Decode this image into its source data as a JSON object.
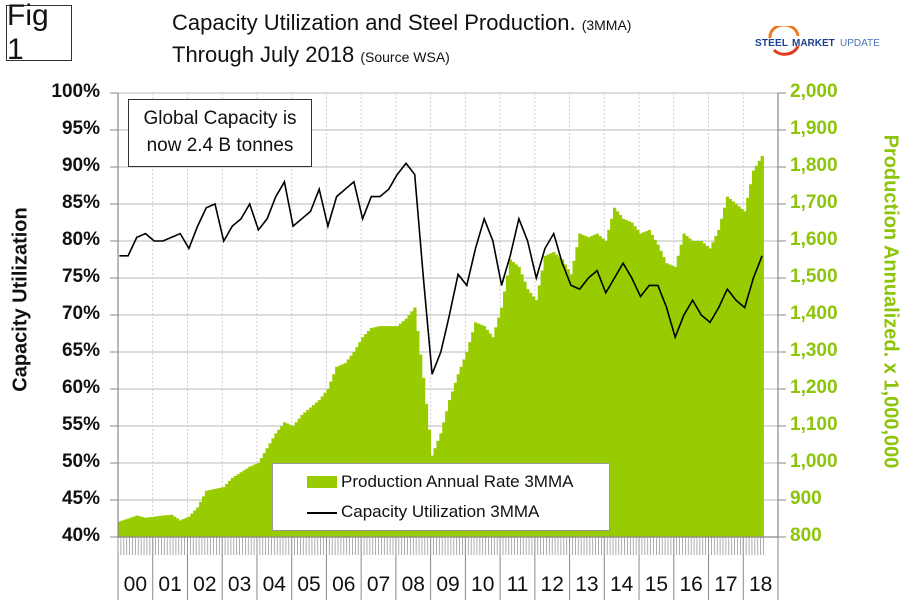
{
  "figure_label": "Fig 1",
  "title": {
    "main": "Capacity Utilization and Steel Production.",
    "main_note": "(3MMA)",
    "sub": "Through July 2018",
    "sub_note": "(Source WSA)"
  },
  "logo": {
    "part1": "STEEL",
    "part2": "MARKET",
    "part3": "UPDATE"
  },
  "annotation": {
    "line1": "Global Capacity is",
    "line2": "now 2.4 B tonnes"
  },
  "colors": {
    "bars": "#99cc00",
    "line": "#000000",
    "right_axis_text": "#8cc40a",
    "grid": "#d0d0d0"
  },
  "chart_data": {
    "type": "bar+line",
    "title": "Capacity Utilization and Steel Production. (3MMA) Through July 2018 (Source WSA)",
    "x_label": "",
    "y_left_label": "Capacity Utilization",
    "y_right_label": "Production Annualized. x 1,000,000",
    "y_left_ticks": [
      "40%",
      "45%",
      "50%",
      "55%",
      "60%",
      "65%",
      "70%",
      "75%",
      "80%",
      "85%",
      "90%",
      "95%",
      "100%"
    ],
    "y_left_range": [
      40,
      100
    ],
    "y_right_ticks": [
      "800",
      "900",
      "1,000",
      "1,100",
      "1,200",
      "1,300",
      "1,400",
      "1,500",
      "1,600",
      "1,700",
      "1,800",
      "1,900",
      "2,000"
    ],
    "y_right_range": [
      800,
      2000
    ],
    "x_tick_labels": [
      "00",
      "01",
      "02",
      "03",
      "04",
      "05",
      "06",
      "07",
      "08",
      "09",
      "10",
      "11",
      "12",
      "13",
      "14",
      "15",
      "16",
      "17",
      "18"
    ],
    "sampling": "quarterly samples (Jan, Apr, Jul, Oct), 2000-01 through 2018-07; rendered as monthly bars by interpolation",
    "legend": [
      "Production Annual Rate 3MMA",
      "Capacity Utilization 3MMA"
    ],
    "legend_position": "bottom-center",
    "grid": true,
    "series": [
      {
        "name": "Production Annual Rate 3MMA",
        "type": "bar",
        "axis": "right",
        "values": [
          842,
          850,
          858,
          852,
          855,
          858,
          860,
          845,
          855,
          880,
          925,
          930,
          935,
          960,
          975,
          990,
          1000,
          1040,
          1080,
          1110,
          1100,
          1130,
          1150,
          1170,
          1200,
          1260,
          1270,
          1300,
          1340,
          1365,
          1370,
          1370,
          1370,
          1390,
          1420,
          1230,
          1020,
          1080,
          1170,
          1240,
          1300,
          1380,
          1370,
          1340,
          1420,
          1550,
          1530,
          1470,
          1440,
          1560,
          1570,
          1550,
          1510,
          1620,
          1610,
          1620,
          1600,
          1690,
          1660,
          1650,
          1620,
          1630,
          1590,
          1540,
          1530,
          1620,
          1600,
          1600,
          1580,
          1630,
          1720,
          1700,
          1680,
          1790,
          1830
        ]
      },
      {
        "name": "Capacity Utilization 3MMA",
        "type": "line",
        "axis": "left",
        "values": [
          78,
          78,
          80.5,
          81,
          80,
          80,
          80.5,
          81,
          79,
          82,
          84.5,
          85,
          80,
          82,
          83,
          85,
          81.5,
          83,
          86,
          88,
          82,
          83,
          84,
          87,
          82,
          86,
          87,
          88,
          83,
          86,
          86,
          87,
          89,
          90.5,
          89,
          75,
          62,
          65,
          70,
          75.5,
          74,
          79,
          83,
          80,
          74,
          78,
          83,
          80,
          75,
          79,
          81,
          77,
          74,
          73.5,
          75,
          76,
          73,
          75,
          77,
          75,
          72.5,
          74,
          74,
          71,
          67,
          70,
          72,
          70,
          69,
          71,
          73.5,
          72,
          71,
          75,
          78
        ]
      }
    ]
  }
}
